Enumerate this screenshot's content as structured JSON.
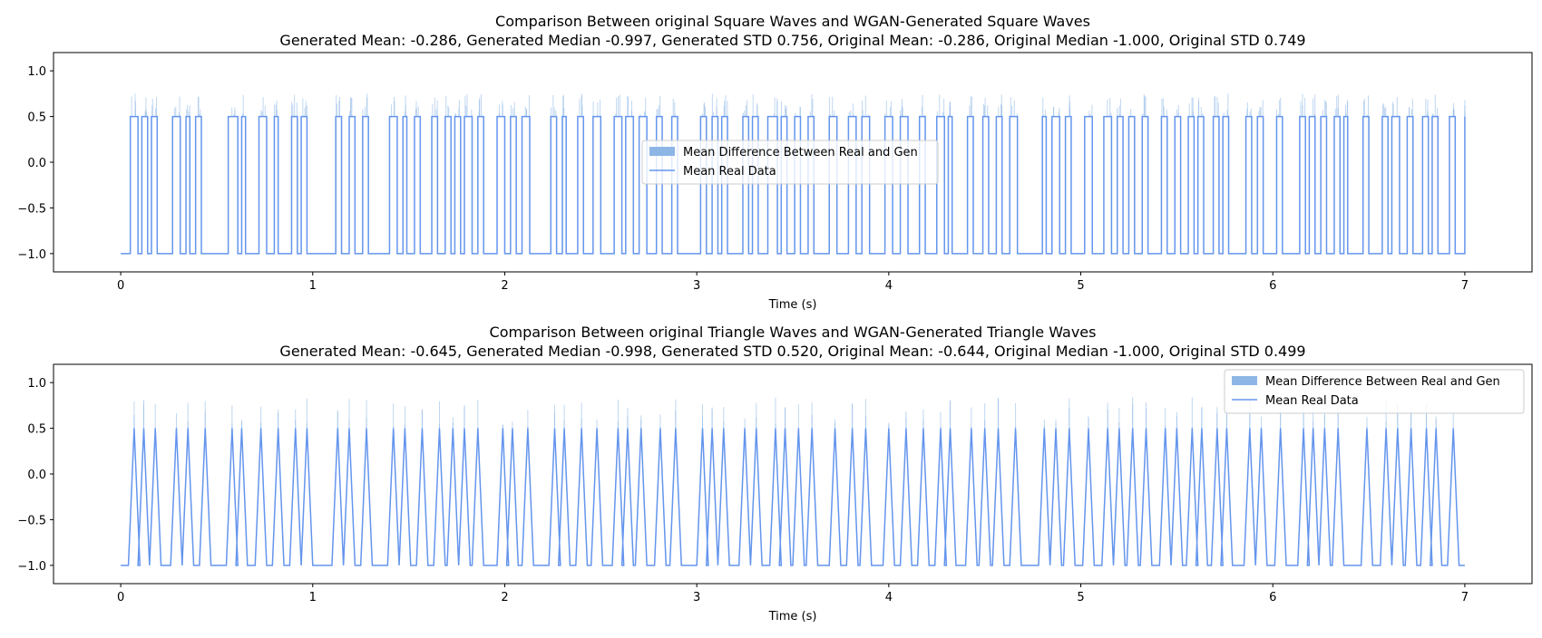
{
  "figure": {
    "colors": {
      "series": "#6495ED",
      "fill": "#8DB6E6",
      "axis": "#000000"
    }
  },
  "chart_data": [
    {
      "type": "line",
      "title": "Comparison Between original Square Waves and WGAN-Generated Square Waves",
      "subtitle": "Generated Mean: -0.286, Generated Median -0.997, Generated STD 0.756, Original Mean: -0.286, Original Median -1.000, Original STD 0.749",
      "xlabel": "Time (s)",
      "ylabel": "",
      "xlim": [
        -0.35,
        7.35
      ],
      "ylim": [
        -1.2,
        1.2
      ],
      "xticks": [
        0,
        1,
        2,
        3,
        4,
        5,
        6,
        7
      ],
      "yticks": [
        -1.0,
        -0.5,
        0.0,
        0.5,
        1.0
      ],
      "ytick_labels": [
        "−1.0",
        "−0.5",
        "0.0",
        "0.5",
        "1.0"
      ],
      "grid": false,
      "legend_position": "center",
      "legend": [
        "Mean Difference Between Real and Gen",
        "Mean Real Data"
      ],
      "wave_shape": "square",
      "low": -1.0,
      "high": 0.5,
      "fill_band_max": 0.75,
      "x": [
        0.0,
        7.0
      ],
      "pulses": [
        [
          0.05,
          0.09
        ],
        [
          0.11,
          0.14
        ],
        [
          0.16,
          0.19
        ],
        [
          0.27,
          0.31
        ],
        [
          0.34,
          0.36
        ],
        [
          0.39,
          0.42
        ],
        [
          0.56,
          0.61
        ],
        [
          0.63,
          0.65
        ],
        [
          0.72,
          0.76
        ],
        [
          0.8,
          0.82
        ],
        [
          0.89,
          0.92
        ],
        [
          0.94,
          0.97
        ],
        [
          1.12,
          1.15
        ],
        [
          1.19,
          1.22
        ],
        [
          1.26,
          1.29
        ],
        [
          1.4,
          1.44
        ],
        [
          1.47,
          1.49
        ],
        [
          1.53,
          1.56
        ],
        [
          1.62,
          1.65
        ],
        [
          1.69,
          1.72
        ],
        [
          1.74,
          1.77
        ],
        [
          1.79,
          1.83
        ],
        [
          1.86,
          1.89
        ],
        [
          1.96,
          2.0
        ],
        [
          2.03,
          2.06
        ],
        [
          2.09,
          2.13
        ],
        [
          2.24,
          2.27
        ],
        [
          2.3,
          2.32
        ],
        [
          2.38,
          2.41
        ],
        [
          2.46,
          2.5
        ],
        [
          2.57,
          2.61
        ],
        [
          2.63,
          2.67
        ],
        [
          2.7,
          2.74
        ],
        [
          2.79,
          2.82
        ],
        [
          2.87,
          2.9
        ],
        [
          3.02,
          3.05
        ],
        [
          3.08,
          3.11
        ],
        [
          3.13,
          3.16
        ],
        [
          3.24,
          3.27
        ],
        [
          3.29,
          3.32
        ],
        [
          3.37,
          3.42
        ],
        [
          3.44,
          3.47
        ],
        [
          3.51,
          3.54
        ],
        [
          3.58,
          3.61
        ],
        [
          3.69,
          3.73
        ],
        [
          3.79,
          3.83
        ],
        [
          3.86,
          3.9
        ],
        [
          3.98,
          4.02
        ],
        [
          4.06,
          4.1
        ],
        [
          4.16,
          4.19
        ],
        [
          4.25,
          4.29
        ],
        [
          4.31,
          4.33
        ],
        [
          4.41,
          4.44
        ],
        [
          4.49,
          4.52
        ],
        [
          4.56,
          4.59
        ],
        [
          4.63,
          4.67
        ],
        [
          4.8,
          4.82
        ],
        [
          4.85,
          4.89
        ],
        [
          4.92,
          4.95
        ],
        [
          5.02,
          5.06
        ],
        [
          5.12,
          5.16
        ],
        [
          5.19,
          5.22
        ],
        [
          5.25,
          5.28
        ],
        [
          5.32,
          5.35
        ],
        [
          5.42,
          5.45
        ],
        [
          5.49,
          5.52
        ],
        [
          5.56,
          5.59
        ],
        [
          5.61,
          5.64
        ],
        [
          5.69,
          5.72
        ],
        [
          5.74,
          5.77
        ],
        [
          5.86,
          5.89
        ],
        [
          5.92,
          5.95
        ],
        [
          6.02,
          6.05
        ],
        [
          6.14,
          6.17
        ],
        [
          6.19,
          6.22
        ],
        [
          6.25,
          6.28
        ],
        [
          6.32,
          6.35
        ],
        [
          6.37,
          6.39
        ],
        [
          6.47,
          6.5
        ],
        [
          6.57,
          6.6
        ],
        [
          6.62,
          6.66
        ],
        [
          6.7,
          6.73
        ],
        [
          6.78,
          6.81
        ],
        [
          6.83,
          6.86
        ],
        [
          6.92,
          6.95
        ],
        [
          7.0,
          7.0
        ]
      ]
    },
    {
      "type": "line",
      "title": "Comparison Between original Triangle Waves and WGAN-Generated Triangle Waves",
      "subtitle": "Generated Mean: -0.645, Generated Median -0.998, Generated STD 0.520, Original Mean: -0.644, Original Median -1.000, Original STD 0.499",
      "xlabel": "Time (s)",
      "ylabel": "",
      "xlim": [
        -0.35,
        7.35
      ],
      "ylim": [
        -1.2,
        1.2
      ],
      "xticks": [
        0,
        1,
        2,
        3,
        4,
        5,
        6,
        7
      ],
      "yticks": [
        -1.0,
        -0.5,
        0.0,
        0.5,
        1.0
      ],
      "ytick_labels": [
        "−1.0",
        "−0.5",
        "0.0",
        "0.5",
        "1.0"
      ],
      "grid": false,
      "legend_position": "upper right",
      "legend": [
        "Mean Difference Between Real and Gen",
        "Mean Real Data"
      ],
      "wave_shape": "triangle",
      "low": -1.0,
      "high": 0.5,
      "fill_band_max": 0.85,
      "x": [
        0.0,
        7.0
      ],
      "peaks": [
        0.07,
        0.12,
        0.18,
        0.29,
        0.35,
        0.44,
        0.58,
        0.63,
        0.73,
        0.82,
        0.91,
        0.97,
        1.13,
        1.19,
        1.28,
        1.42,
        1.48,
        1.57,
        1.66,
        1.73,
        1.79,
        1.86,
        1.99,
        2.04,
        2.12,
        2.26,
        2.31,
        2.4,
        2.48,
        2.59,
        2.64,
        2.71,
        2.81,
        2.89,
        3.03,
        3.08,
        3.14,
        3.25,
        3.31,
        3.41,
        3.46,
        3.53,
        3.6,
        3.72,
        3.81,
        3.88,
        4.0,
        4.09,
        4.18,
        4.27,
        4.32,
        4.43,
        4.5,
        4.57,
        4.66,
        4.81,
        4.87,
        4.94,
        5.04,
        5.14,
        5.2,
        5.27,
        5.34,
        5.44,
        5.5,
        5.58,
        5.63,
        5.71,
        5.76,
        5.88,
        5.94,
        6.04,
        6.16,
        6.21,
        6.27,
        6.34,
        6.49,
        6.59,
        6.65,
        6.72,
        6.8,
        6.85,
        6.94
      ]
    }
  ]
}
